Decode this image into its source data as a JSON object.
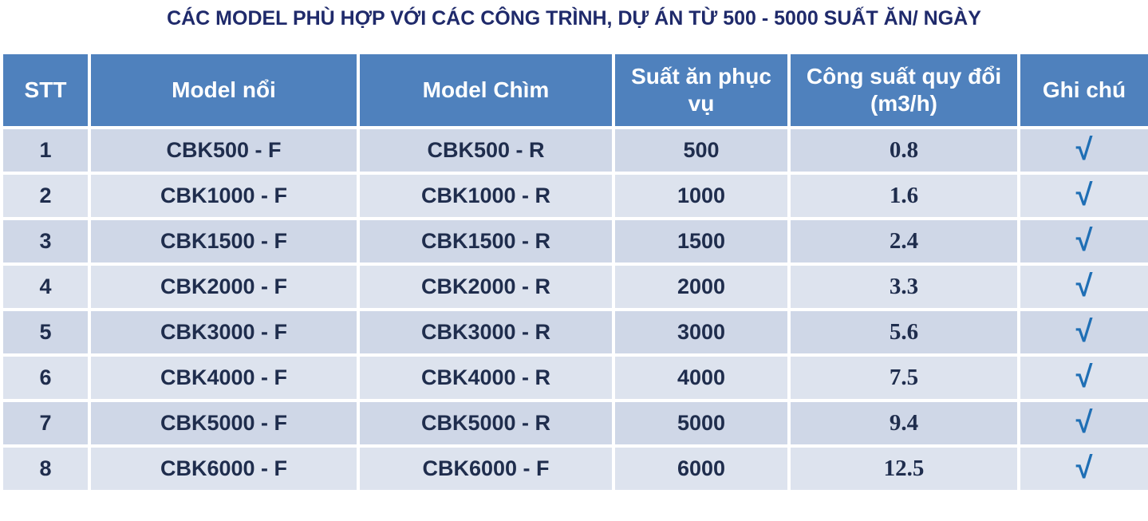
{
  "title": "CÁC MODEL PHÙ HỢP VỚI CÁC CÔNG TRÌNH, DỰ ÁN TỪ 500 - 5000 SUẤT ĂN/ NGÀY",
  "table": {
    "header": [
      "STT",
      "Model nổi",
      "Model Chìm",
      "Suất ăn phục vụ",
      "Công suất quy đổi (m3/h)",
      "Ghi chú"
    ],
    "rows": [
      [
        "1",
        "CBK500 - F",
        "CBK500 - R",
        "500",
        "0.8",
        "√"
      ],
      [
        "2",
        "CBK1000 - F",
        "CBK1000 - R",
        "1000",
        "1.6",
        "√"
      ],
      [
        "3",
        "CBK1500 - F",
        "CBK1500 - R",
        "1500",
        "2.4",
        "√"
      ],
      [
        "4",
        "CBK2000 - F",
        "CBK2000 - R",
        "2000",
        "3.3",
        "√"
      ],
      [
        "5",
        "CBK3000 - F",
        "CBK3000 - R",
        "3000",
        "5.6",
        "√"
      ],
      [
        "6",
        "CBK4000 - F",
        "CBK4000 - R",
        "4000",
        "7.5",
        "√"
      ],
      [
        "7",
        "CBK5000 - F",
        "CBK5000 - R",
        "5000",
        "9.4",
        "√"
      ],
      [
        "8",
        "CBK6000 - F",
        "CBK6000 - F",
        "6000",
        "12.5",
        "√"
      ]
    ]
  }
}
